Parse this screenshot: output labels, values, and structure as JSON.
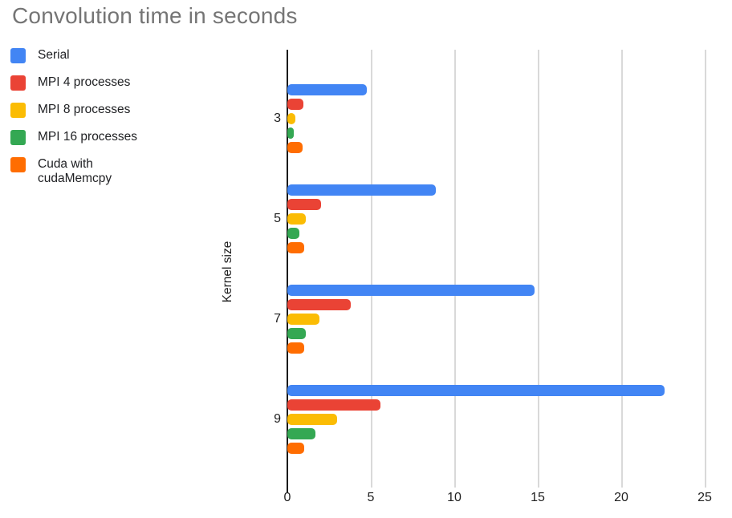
{
  "chart_data": {
    "type": "bar",
    "orientation": "horizontal",
    "title": "Convolution time in seconds",
    "xlabel": "",
    "ylabel": "Kernel size",
    "categories": [
      "3",
      "5",
      "7",
      "9"
    ],
    "series": [
      {
        "name": "Serial",
        "color": "#4285F4",
        "values": [
          4.75,
          8.9,
          14.8,
          22.6
        ]
      },
      {
        "name": "MPI 4 processes",
        "color": "#EA4335",
        "values": [
          0.95,
          2.0,
          3.8,
          5.6
        ]
      },
      {
        "name": "MPI 8 processes",
        "color": "#FBBC04",
        "values": [
          0.5,
          1.1,
          1.9,
          3.0
        ]
      },
      {
        "name": "MPI 16 processes",
        "color": "#34A853",
        "values": [
          0.4,
          0.7,
          1.1,
          1.7
        ]
      },
      {
        "name": "Cuda with cudaMemcpy",
        "color": "#FF6D01",
        "values": [
          0.9,
          1.0,
          1.0,
          1.0
        ]
      }
    ],
    "x_ticks": [
      "0",
      "5",
      "10",
      "15",
      "20",
      "25"
    ],
    "xlim": [
      0,
      25
    ],
    "grid": true,
    "legend_position": "top-left",
    "axis_color": "#1a1a1a",
    "gridline_color": "#d9d9d9",
    "title_color": "#757575"
  }
}
